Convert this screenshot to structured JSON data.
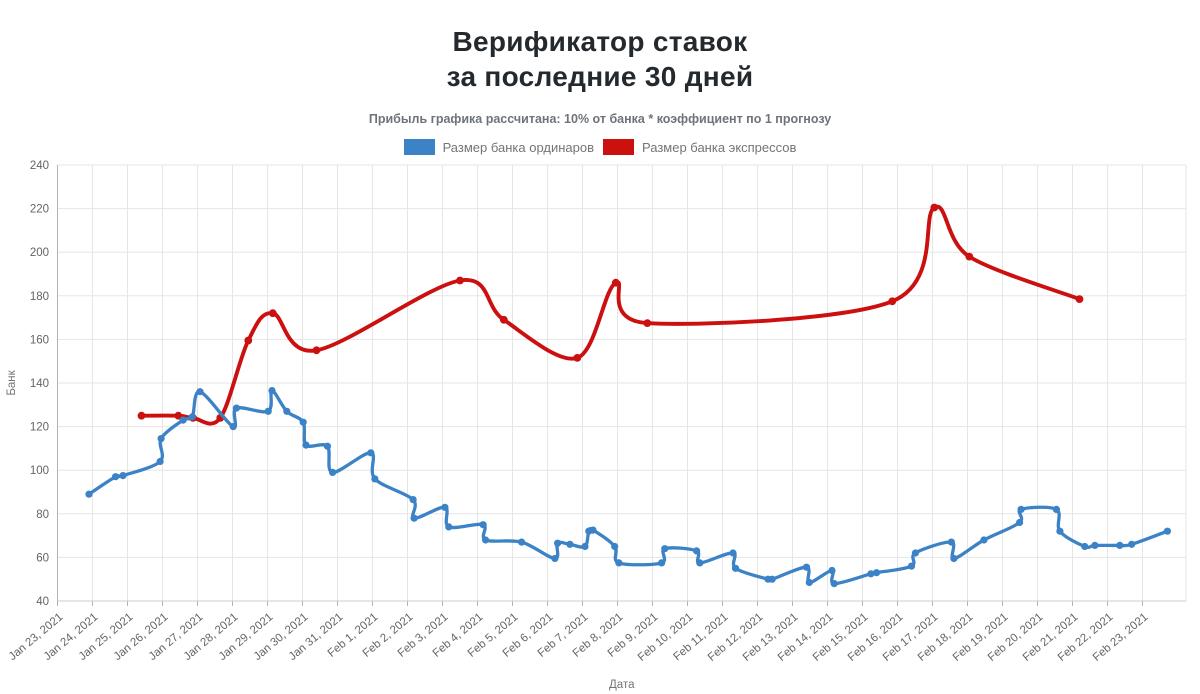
{
  "header": {
    "title_line1": "Верификатор ставок",
    "title_line2": "за последние 30 дней",
    "subtitle": "Прибыль графика рассчитана: 10% от банка * коэффициент по 1 прогнозу"
  },
  "chart_data": {
    "type": "line",
    "title": "Верификатор ставок за последние 30 дней",
    "grid": true,
    "legend_position": "top",
    "x_axis": {
      "title": "Дата",
      "type": "date",
      "x_unit": "days since Jan 23, 2021 (fractional = time of day)",
      "tick_labels": [
        "Jan 23, 2021",
        "Jan 24, 2021",
        "Jan 25, 2021",
        "Jan 26, 2021",
        "Jan 27, 2021",
        "Jan 28, 2021",
        "Jan 29, 2021",
        "Jan 30, 2021",
        "Jan 31, 2021",
        "Feb 1, 2021",
        "Feb 2, 2021",
        "Feb 3, 2021",
        "Feb 4, 2021",
        "Feb 5, 2021",
        "Feb 6, 2021",
        "Feb 7, 2021",
        "Feb 8, 2021",
        "Feb 9, 2021",
        "Feb 10, 2021",
        "Feb 11, 2021",
        "Feb 12, 2021",
        "Feb 13, 2021",
        "Feb 14, 2021",
        "Feb 15, 2021",
        "Feb 16, 2021",
        "Feb 17, 2021",
        "Feb 18, 2021",
        "Feb 19, 2021",
        "Feb 20, 2021",
        "Feb 21, 2021",
        "Feb 22, 2021",
        "Feb 23, 2021"
      ]
    },
    "y_axis": {
      "title": "Банк",
      "min": 40,
      "max": 240,
      "tick_step": 20,
      "tick_labels": [
        40,
        60,
        80,
        100,
        120,
        140,
        160,
        180,
        200,
        220,
        240
      ]
    },
    "series": [
      {
        "name": "Размер банка ординаров",
        "color": "#3b82c6",
        "points": [
          [
            0.9,
            89
          ],
          [
            1.66,
            97
          ],
          [
            1.87,
            97.5
          ],
          [
            2.93,
            104
          ],
          [
            2.96,
            114.5
          ],
          [
            3.59,
            123
          ],
          [
            3.85,
            124.5
          ],
          [
            4.07,
            136
          ],
          [
            5.02,
            120
          ],
          [
            5.11,
            128.5
          ],
          [
            6.02,
            127
          ],
          [
            6.13,
            136.5
          ],
          [
            6.55,
            127
          ],
          [
            7.02,
            122
          ],
          [
            7.1,
            111.5
          ],
          [
            7.71,
            111
          ],
          [
            7.86,
            99
          ],
          [
            8.95,
            108
          ],
          [
            9.07,
            96
          ],
          [
            10.16,
            86.5
          ],
          [
            10.19,
            78
          ],
          [
            11.07,
            83
          ],
          [
            11.18,
            74
          ],
          [
            12.16,
            75
          ],
          [
            12.23,
            68
          ],
          [
            13.26,
            67
          ],
          [
            14.21,
            59.5
          ],
          [
            14.29,
            66.5
          ],
          [
            14.64,
            66
          ],
          [
            15.07,
            65
          ],
          [
            15.18,
            72
          ],
          [
            15.3,
            72.5
          ],
          [
            15.92,
            65
          ],
          [
            16.04,
            57.5
          ],
          [
            17.26,
            57.5
          ],
          [
            17.35,
            64
          ],
          [
            18.26,
            63
          ],
          [
            18.35,
            57.5
          ],
          [
            19.3,
            62
          ],
          [
            19.37,
            55
          ],
          [
            20.3,
            50
          ],
          [
            20.42,
            50
          ],
          [
            21.4,
            55.5
          ],
          [
            21.48,
            48.5
          ],
          [
            22.13,
            54
          ],
          [
            22.19,
            48
          ],
          [
            23.24,
            52.5
          ],
          [
            23.4,
            53
          ],
          [
            24.4,
            56
          ],
          [
            24.51,
            62
          ],
          [
            25.54,
            67
          ],
          [
            25.61,
            59.5
          ],
          [
            26.47,
            68
          ],
          [
            27.49,
            76
          ],
          [
            27.53,
            82
          ],
          [
            28.54,
            82
          ],
          [
            28.64,
            72
          ],
          [
            29.35,
            65
          ],
          [
            29.64,
            65.5
          ],
          [
            30.35,
            65.5
          ],
          [
            30.69,
            66
          ],
          [
            31.71,
            72
          ]
        ]
      },
      {
        "name": "Размер банка экспрессов",
        "color": "#cc1010",
        "points": [
          [
            2.4,
            125
          ],
          [
            3.45,
            125
          ],
          [
            3.87,
            124
          ],
          [
            4.65,
            124
          ],
          [
            5.45,
            159.5
          ],
          [
            6.15,
            172
          ],
          [
            7.4,
            155
          ],
          [
            11.5,
            187
          ],
          [
            12.75,
            169
          ],
          [
            14.85,
            151.5
          ],
          [
            15.95,
            186
          ],
          [
            16.85,
            167.5
          ],
          [
            23.85,
            177.5
          ],
          [
            25.05,
            220.5
          ],
          [
            26.05,
            198
          ],
          [
            29.2,
            178.5
          ]
        ]
      }
    ]
  },
  "colors": {
    "series_ordinary": "#3b82c6",
    "series_express": "#cc1010",
    "gridline": "#e6e6e6",
    "axis_line": "#b3b3b3",
    "tick_label": "#646464",
    "axis_title": "#757575"
  }
}
